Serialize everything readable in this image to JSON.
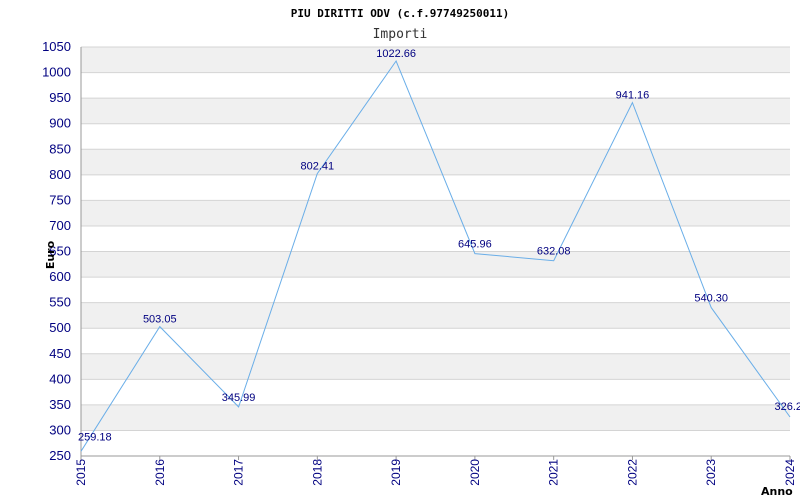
{
  "chart_data": {
    "type": "line",
    "title": "PIU DIRITTI ODV (c.f.97749250011)",
    "subtitle": "Importi",
    "xlabel": "Anno",
    "ylabel": "Euro",
    "categories": [
      "2015",
      "2016",
      "2017",
      "2018",
      "2019",
      "2020",
      "2021",
      "2022",
      "2023",
      "2024"
    ],
    "values": [
      259.18,
      503.05,
      345.99,
      802.41,
      1022.66,
      645.96,
      632.08,
      941.16,
      540.3,
      326.2
    ],
    "data_labels": [
      "259.18",
      "503.05",
      "345.99",
      "802.41",
      "1022.66",
      "645.96",
      "632.08",
      "941.16",
      "540.30",
      "326.2"
    ],
    "ylim": [
      250,
      1050
    ],
    "y_ticks": [
      "250",
      "300",
      "350",
      "400",
      "450",
      "500",
      "550",
      "600",
      "650",
      "700",
      "750",
      "800",
      "850",
      "900",
      "950",
      "1000",
      "1050"
    ],
    "grid": true,
    "colors": {
      "line": "#6aaee8",
      "band": "#f0f0f0",
      "gridline": "#d4d4d4",
      "tick_text": "#000080"
    }
  }
}
